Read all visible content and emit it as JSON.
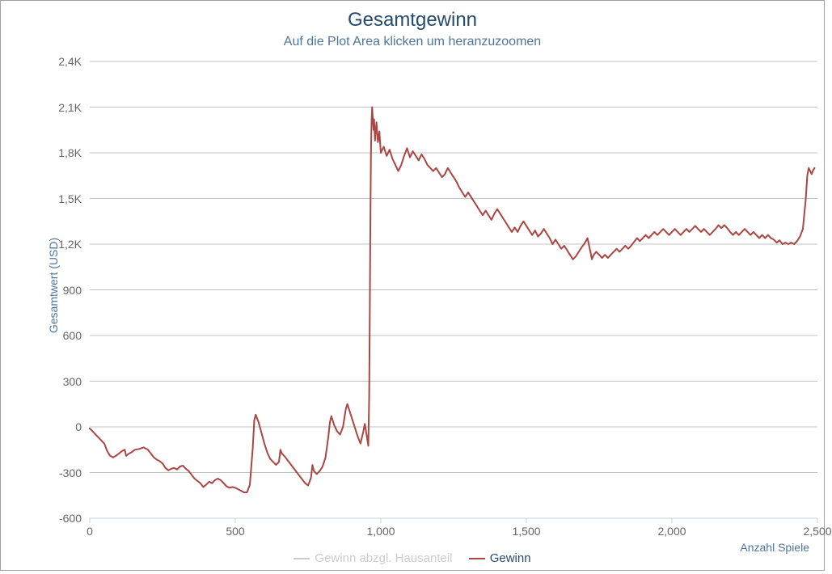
{
  "chart": {
    "type": "line",
    "title": "Gesamtgewinn",
    "subtitle": "Auf die Plot Area klicken um heranzuzoomen",
    "title_fontsize": 24,
    "subtitle_fontsize": 16,
    "title_color": "#274b6d",
    "subtitle_color": "#4d759e",
    "background_color": "#ffffff",
    "border_color": "#a0a0a0",
    "grid_color": "#c0c0c0",
    "axis_line_color": "#c0d0e0",
    "tick_label_color": "#666666",
    "tick_label_fontsize": 14,
    "series_line_width": 2,
    "x_axis": {
      "title": "Anzahl Spiele",
      "min": 0,
      "max": 2500,
      "tick_step": 500,
      "ticks": [
        0,
        500,
        1000,
        1500,
        2000,
        2500
      ],
      "tick_labels": [
        "0",
        "500",
        "1,000",
        "1,500",
        "2,000",
        "2,500"
      ]
    },
    "y_axis": {
      "title": "Gesamtwert (USD)",
      "min": -600,
      "max": 2400,
      "tick_step": 300,
      "ticks": [
        -600,
        -300,
        0,
        300,
        600,
        900,
        1200,
        1500,
        1800,
        2100,
        2400
      ],
      "tick_labels": [
        "-600",
        "-300",
        "0",
        "300",
        "600",
        "900",
        "1,2K",
        "1,5K",
        "1,8K",
        "2,1K",
        "2,4K"
      ]
    },
    "legend": {
      "position": "bottom-center",
      "items": [
        {
          "label": "Gewinn abzgl. Hausanteil",
          "color": "#cccccc",
          "enabled": false
        },
        {
          "label": "Gewinn",
          "color": "#aa4643",
          "enabled": true
        }
      ]
    },
    "series": [
      {
        "name": "Gewinn",
        "color": "#aa4643",
        "data": [
          [
            0,
            -10
          ],
          [
            10,
            -30
          ],
          [
            20,
            -50
          ],
          [
            30,
            -70
          ],
          [
            40,
            -90
          ],
          [
            50,
            -110
          ],
          [
            60,
            -160
          ],
          [
            70,
            -190
          ],
          [
            80,
            -200
          ],
          [
            90,
            -190
          ],
          [
            100,
            -175
          ],
          [
            110,
            -160
          ],
          [
            120,
            -150
          ],
          [
            125,
            -190
          ],
          [
            135,
            -175
          ],
          [
            145,
            -165
          ],
          [
            155,
            -150
          ],
          [
            170,
            -145
          ],
          [
            185,
            -135
          ],
          [
            200,
            -150
          ],
          [
            210,
            -175
          ],
          [
            220,
            -200
          ],
          [
            230,
            -215
          ],
          [
            240,
            -225
          ],
          [
            250,
            -240
          ],
          [
            260,
            -270
          ],
          [
            270,
            -285
          ],
          [
            280,
            -275
          ],
          [
            290,
            -270
          ],
          [
            300,
            -280
          ],
          [
            310,
            -260
          ],
          [
            320,
            -255
          ],
          [
            330,
            -275
          ],
          [
            340,
            -290
          ],
          [
            350,
            -315
          ],
          [
            360,
            -340
          ],
          [
            370,
            -355
          ],
          [
            380,
            -370
          ],
          [
            390,
            -395
          ],
          [
            400,
            -380
          ],
          [
            410,
            -360
          ],
          [
            420,
            -370
          ],
          [
            430,
            -350
          ],
          [
            440,
            -340
          ],
          [
            450,
            -350
          ],
          [
            460,
            -370
          ],
          [
            470,
            -390
          ],
          [
            480,
            -400
          ],
          [
            490,
            -395
          ],
          [
            500,
            -400
          ],
          [
            510,
            -410
          ],
          [
            520,
            -420
          ],
          [
            530,
            -430
          ],
          [
            540,
            -430
          ],
          [
            550,
            -380
          ],
          [
            555,
            -260
          ],
          [
            560,
            -140
          ],
          [
            565,
            40
          ],
          [
            570,
            80
          ],
          [
            580,
            30
          ],
          [
            590,
            -40
          ],
          [
            600,
            -110
          ],
          [
            610,
            -170
          ],
          [
            620,
            -210
          ],
          [
            630,
            -230
          ],
          [
            640,
            -250
          ],
          [
            650,
            -230
          ],
          [
            655,
            -150
          ],
          [
            660,
            -175
          ],
          [
            670,
            -195
          ],
          [
            680,
            -220
          ],
          [
            690,
            -245
          ],
          [
            700,
            -270
          ],
          [
            710,
            -295
          ],
          [
            720,
            -320
          ],
          [
            730,
            -345
          ],
          [
            740,
            -370
          ],
          [
            750,
            -385
          ],
          [
            760,
            -335
          ],
          [
            765,
            -250
          ],
          [
            770,
            -290
          ],
          [
            780,
            -310
          ],
          [
            790,
            -290
          ],
          [
            800,
            -260
          ],
          [
            810,
            -200
          ],
          [
            815,
            -130
          ],
          [
            820,
            -60
          ],
          [
            825,
            30
          ],
          [
            830,
            70
          ],
          [
            840,
            10
          ],
          [
            850,
            -30
          ],
          [
            860,
            -50
          ],
          [
            870,
            0
          ],
          [
            875,
            60
          ],
          [
            880,
            120
          ],
          [
            885,
            150
          ],
          [
            890,
            120
          ],
          [
            895,
            90
          ],
          [
            900,
            60
          ],
          [
            905,
            30
          ],
          [
            910,
            0
          ],
          [
            920,
            -60
          ],
          [
            930,
            -110
          ],
          [
            935,
            -70
          ],
          [
            940,
            -30
          ],
          [
            945,
            20
          ],
          [
            950,
            -40
          ],
          [
            955,
            -100
          ],
          [
            957,
            -125
          ],
          [
            960,
            200
          ],
          [
            962,
            700
          ],
          [
            964,
            1300
          ],
          [
            966,
            1800
          ],
          [
            968,
            2000
          ],
          [
            970,
            2100
          ],
          [
            975,
            1950
          ],
          [
            977,
            2020
          ],
          [
            980,
            1880
          ],
          [
            985,
            2000
          ],
          [
            990,
            1870
          ],
          [
            995,
            1940
          ],
          [
            1000,
            1800
          ],
          [
            1010,
            1840
          ],
          [
            1020,
            1780
          ],
          [
            1030,
            1820
          ],
          [
            1040,
            1760
          ],
          [
            1050,
            1720
          ],
          [
            1060,
            1680
          ],
          [
            1070,
            1720
          ],
          [
            1080,
            1780
          ],
          [
            1090,
            1830
          ],
          [
            1095,
            1800
          ],
          [
            1100,
            1770
          ],
          [
            1110,
            1810
          ],
          [
            1120,
            1780
          ],
          [
            1130,
            1750
          ],
          [
            1140,
            1790
          ],
          [
            1150,
            1760
          ],
          [
            1160,
            1720
          ],
          [
            1170,
            1700
          ],
          [
            1180,
            1680
          ],
          [
            1190,
            1700
          ],
          [
            1200,
            1670
          ],
          [
            1210,
            1640
          ],
          [
            1220,
            1660
          ],
          [
            1230,
            1700
          ],
          [
            1240,
            1670
          ],
          [
            1250,
            1640
          ],
          [
            1260,
            1610
          ],
          [
            1270,
            1570
          ],
          [
            1280,
            1540
          ],
          [
            1290,
            1510
          ],
          [
            1300,
            1540
          ],
          [
            1310,
            1510
          ],
          [
            1320,
            1480
          ],
          [
            1330,
            1450
          ],
          [
            1340,
            1420
          ],
          [
            1350,
            1390
          ],
          [
            1360,
            1420
          ],
          [
            1370,
            1390
          ],
          [
            1380,
            1360
          ],
          [
            1390,
            1400
          ],
          [
            1400,
            1430
          ],
          [
            1410,
            1400
          ],
          [
            1420,
            1370
          ],
          [
            1430,
            1340
          ],
          [
            1440,
            1310
          ],
          [
            1450,
            1280
          ],
          [
            1460,
            1310
          ],
          [
            1470,
            1280
          ],
          [
            1480,
            1320
          ],
          [
            1490,
            1350
          ],
          [
            1500,
            1320
          ],
          [
            1510,
            1290
          ],
          [
            1520,
            1260
          ],
          [
            1530,
            1290
          ],
          [
            1540,
            1250
          ],
          [
            1550,
            1270
          ],
          [
            1560,
            1300
          ],
          [
            1570,
            1270
          ],
          [
            1580,
            1240
          ],
          [
            1590,
            1200
          ],
          [
            1600,
            1230
          ],
          [
            1610,
            1200
          ],
          [
            1620,
            1170
          ],
          [
            1630,
            1190
          ],
          [
            1640,
            1160
          ],
          [
            1650,
            1130
          ],
          [
            1660,
            1100
          ],
          [
            1670,
            1120
          ],
          [
            1680,
            1150
          ],
          [
            1690,
            1180
          ],
          [
            1700,
            1205
          ],
          [
            1710,
            1240
          ],
          [
            1720,
            1150
          ],
          [
            1725,
            1100
          ],
          [
            1730,
            1125
          ],
          [
            1740,
            1150
          ],
          [
            1750,
            1130
          ],
          [
            1760,
            1110
          ],
          [
            1770,
            1130
          ],
          [
            1780,
            1110
          ],
          [
            1790,
            1130
          ],
          [
            1800,
            1150
          ],
          [
            1810,
            1170
          ],
          [
            1820,
            1150
          ],
          [
            1830,
            1170
          ],
          [
            1840,
            1190
          ],
          [
            1850,
            1170
          ],
          [
            1860,
            1190
          ],
          [
            1870,
            1215
          ],
          [
            1880,
            1240
          ],
          [
            1890,
            1220
          ],
          [
            1900,
            1240
          ],
          [
            1910,
            1260
          ],
          [
            1920,
            1240
          ],
          [
            1930,
            1260
          ],
          [
            1940,
            1280
          ],
          [
            1950,
            1260
          ],
          [
            1960,
            1280
          ],
          [
            1970,
            1300
          ],
          [
            1980,
            1280
          ],
          [
            1990,
            1260
          ],
          [
            2000,
            1280
          ],
          [
            2010,
            1300
          ],
          [
            2020,
            1280
          ],
          [
            2030,
            1260
          ],
          [
            2040,
            1280
          ],
          [
            2050,
            1300
          ],
          [
            2060,
            1280
          ],
          [
            2070,
            1300
          ],
          [
            2080,
            1320
          ],
          [
            2090,
            1300
          ],
          [
            2100,
            1280
          ],
          [
            2110,
            1300
          ],
          [
            2120,
            1280
          ],
          [
            2130,
            1260
          ],
          [
            2140,
            1280
          ],
          [
            2150,
            1300
          ],
          [
            2160,
            1325
          ],
          [
            2170,
            1305
          ],
          [
            2180,
            1325
          ],
          [
            2190,
            1305
          ],
          [
            2200,
            1280
          ],
          [
            2210,
            1260
          ],
          [
            2220,
            1280
          ],
          [
            2230,
            1260
          ],
          [
            2240,
            1280
          ],
          [
            2250,
            1300
          ],
          [
            2260,
            1280
          ],
          [
            2270,
            1260
          ],
          [
            2280,
            1280
          ],
          [
            2290,
            1260
          ],
          [
            2300,
            1240
          ],
          [
            2310,
            1260
          ],
          [
            2320,
            1240
          ],
          [
            2330,
            1260
          ],
          [
            2340,
            1240
          ],
          [
            2350,
            1230
          ],
          [
            2360,
            1210
          ],
          [
            2370,
            1225
          ],
          [
            2380,
            1200
          ],
          [
            2390,
            1210
          ],
          [
            2400,
            1200
          ],
          [
            2410,
            1210
          ],
          [
            2420,
            1200
          ],
          [
            2430,
            1220
          ],
          [
            2440,
            1250
          ],
          [
            2450,
            1300
          ],
          [
            2460,
            1500
          ],
          [
            2465,
            1650
          ],
          [
            2470,
            1700
          ],
          [
            2475,
            1680
          ],
          [
            2480,
            1660
          ],
          [
            2485,
            1685
          ],
          [
            2490,
            1700
          ]
        ]
      }
    ]
  }
}
